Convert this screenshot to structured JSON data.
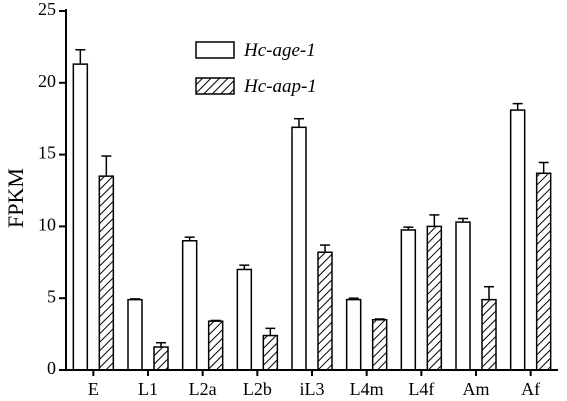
{
  "chart_data": {
    "type": "bar",
    "title": "",
    "xlabel": "",
    "ylabel": "FPKM",
    "ylim": [
      0,
      25
    ],
    "yticks": [
      0,
      5,
      10,
      15,
      20,
      25
    ],
    "grid": false,
    "legend_position": "top-center",
    "categories": [
      "E",
      "L1",
      "L2a",
      "L2b",
      "iL3",
      "L4m",
      "L4f",
      "Am",
      "Af"
    ],
    "series": [
      {
        "name": "Hc-age-1",
        "fill": "open",
        "values": [
          21.3,
          4.9,
          9.0,
          7.0,
          16.9,
          4.9,
          9.75,
          10.3,
          18.1
        ],
        "errors": [
          1.0,
          0.05,
          0.25,
          0.3,
          0.6,
          0.1,
          0.2,
          0.25,
          0.45
        ]
      },
      {
        "name": "Hc-aap-1",
        "fill": "hatched",
        "values": [
          13.5,
          1.6,
          3.4,
          2.4,
          8.2,
          3.5,
          10.0,
          4.9,
          13.7
        ],
        "errors": [
          1.4,
          0.3,
          0.05,
          0.5,
          0.5,
          0.05,
          0.8,
          0.9,
          0.75
        ]
      }
    ]
  }
}
